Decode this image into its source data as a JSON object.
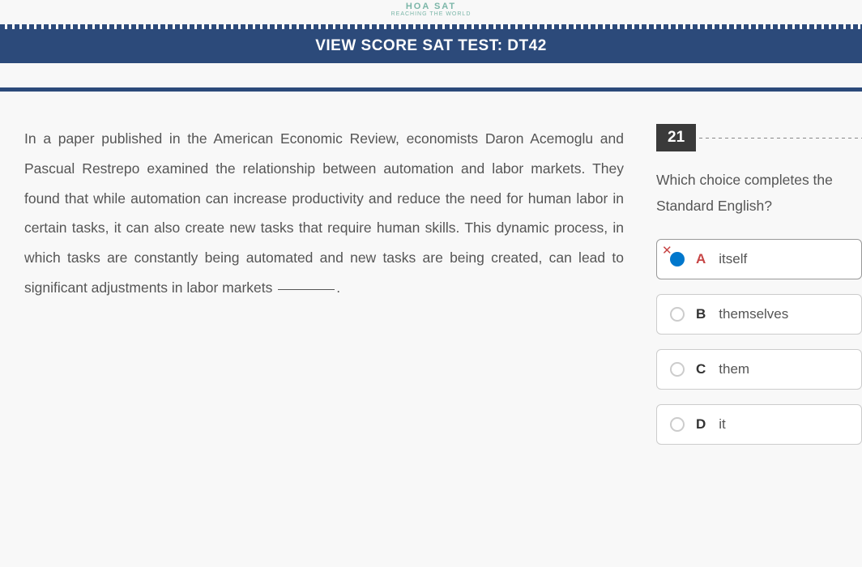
{
  "brand": {
    "line1": "HOA SAT",
    "line2": "REACHING THE WORLD"
  },
  "titleBar": "VIEW SCORE SAT TEST: DT42",
  "passage": "In a paper published in the American Economic Review,  economists Daron Acemoglu and Pascual Restrepo examined the relationship between automation and labor markets. They found that while automation can increase productivity and reduce the need for human labor in certain tasks, it can also create new tasks that  require human skills. This dynamic process, in which tasks are constantly being automated and new tasks are being created, can lead to significant adjustments in labor markets ",
  "passageEnd": ".",
  "question": {
    "number": "21",
    "text": "Which choice completes the Standard English?"
  },
  "answers": [
    {
      "letter": "A",
      "text": "itself",
      "selected": true,
      "struck": true
    },
    {
      "letter": "B",
      "text": "themselves",
      "selected": false,
      "struck": false
    },
    {
      "letter": "C",
      "text": "them",
      "selected": false,
      "struck": false
    },
    {
      "letter": "D",
      "text": "it",
      "selected": false,
      "struck": false
    }
  ],
  "colors": {
    "primary": "#2c4a7a",
    "accent": "#0077cc",
    "error": "#c74545",
    "brand": "#7bb6a8"
  }
}
